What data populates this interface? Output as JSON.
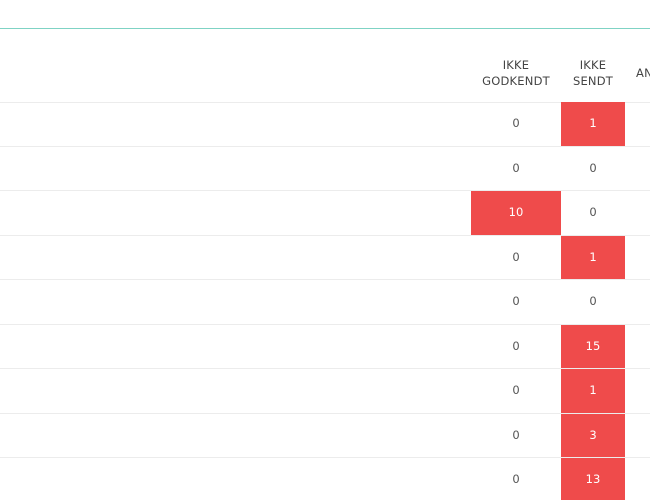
{
  "table": {
    "columns": {
      "ikke_godkendt": [
        "IKKE",
        "GODKENDT"
      ],
      "ikke_sendt": [
        "IKKE",
        "SENDT"
      ],
      "partial": "AN"
    },
    "highlight_color": "#ef4b4b",
    "rows": [
      {
        "ikke_godkendt": "0",
        "ikke_sendt": "1",
        "godkendt_alert": false,
        "sendt_alert": true
      },
      {
        "ikke_godkendt": "0",
        "ikke_sendt": "0",
        "godkendt_alert": false,
        "sendt_alert": false
      },
      {
        "ikke_godkendt": "10",
        "ikke_sendt": "0",
        "godkendt_alert": true,
        "sendt_alert": false
      },
      {
        "ikke_godkendt": "0",
        "ikke_sendt": "1",
        "godkendt_alert": false,
        "sendt_alert": true
      },
      {
        "ikke_godkendt": "0",
        "ikke_sendt": "0",
        "godkendt_alert": false,
        "sendt_alert": false
      },
      {
        "ikke_godkendt": "0",
        "ikke_sendt": "15",
        "godkendt_alert": false,
        "sendt_alert": true
      },
      {
        "ikke_godkendt": "0",
        "ikke_sendt": "1",
        "godkendt_alert": false,
        "sendt_alert": true
      },
      {
        "ikke_godkendt": "0",
        "ikke_sendt": "3",
        "godkendt_alert": false,
        "sendt_alert": true
      },
      {
        "ikke_godkendt": "0",
        "ikke_sendt": "13",
        "godkendt_alert": false,
        "sendt_alert": true
      }
    ]
  }
}
